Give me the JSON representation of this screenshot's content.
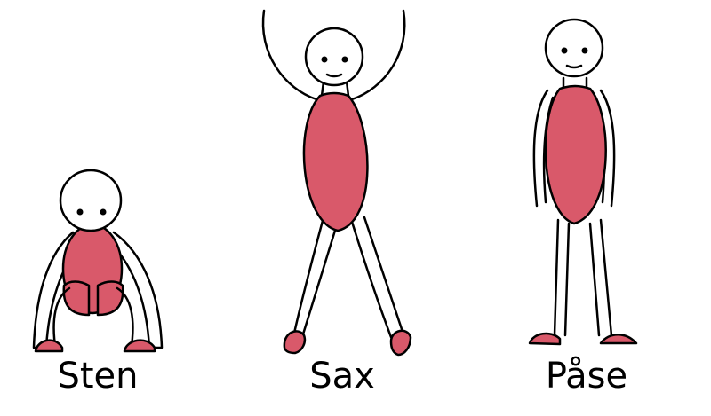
{
  "figures": [
    {
      "key": "sten",
      "label": "Sten"
    },
    {
      "key": "sax",
      "label": "Sax"
    },
    {
      "key": "pase",
      "label": "Påse"
    }
  ],
  "colors": {
    "body_fill": "#d9596a",
    "stroke": "#000000",
    "head_fill": "#ffffff",
    "background": "#ffffff"
  }
}
